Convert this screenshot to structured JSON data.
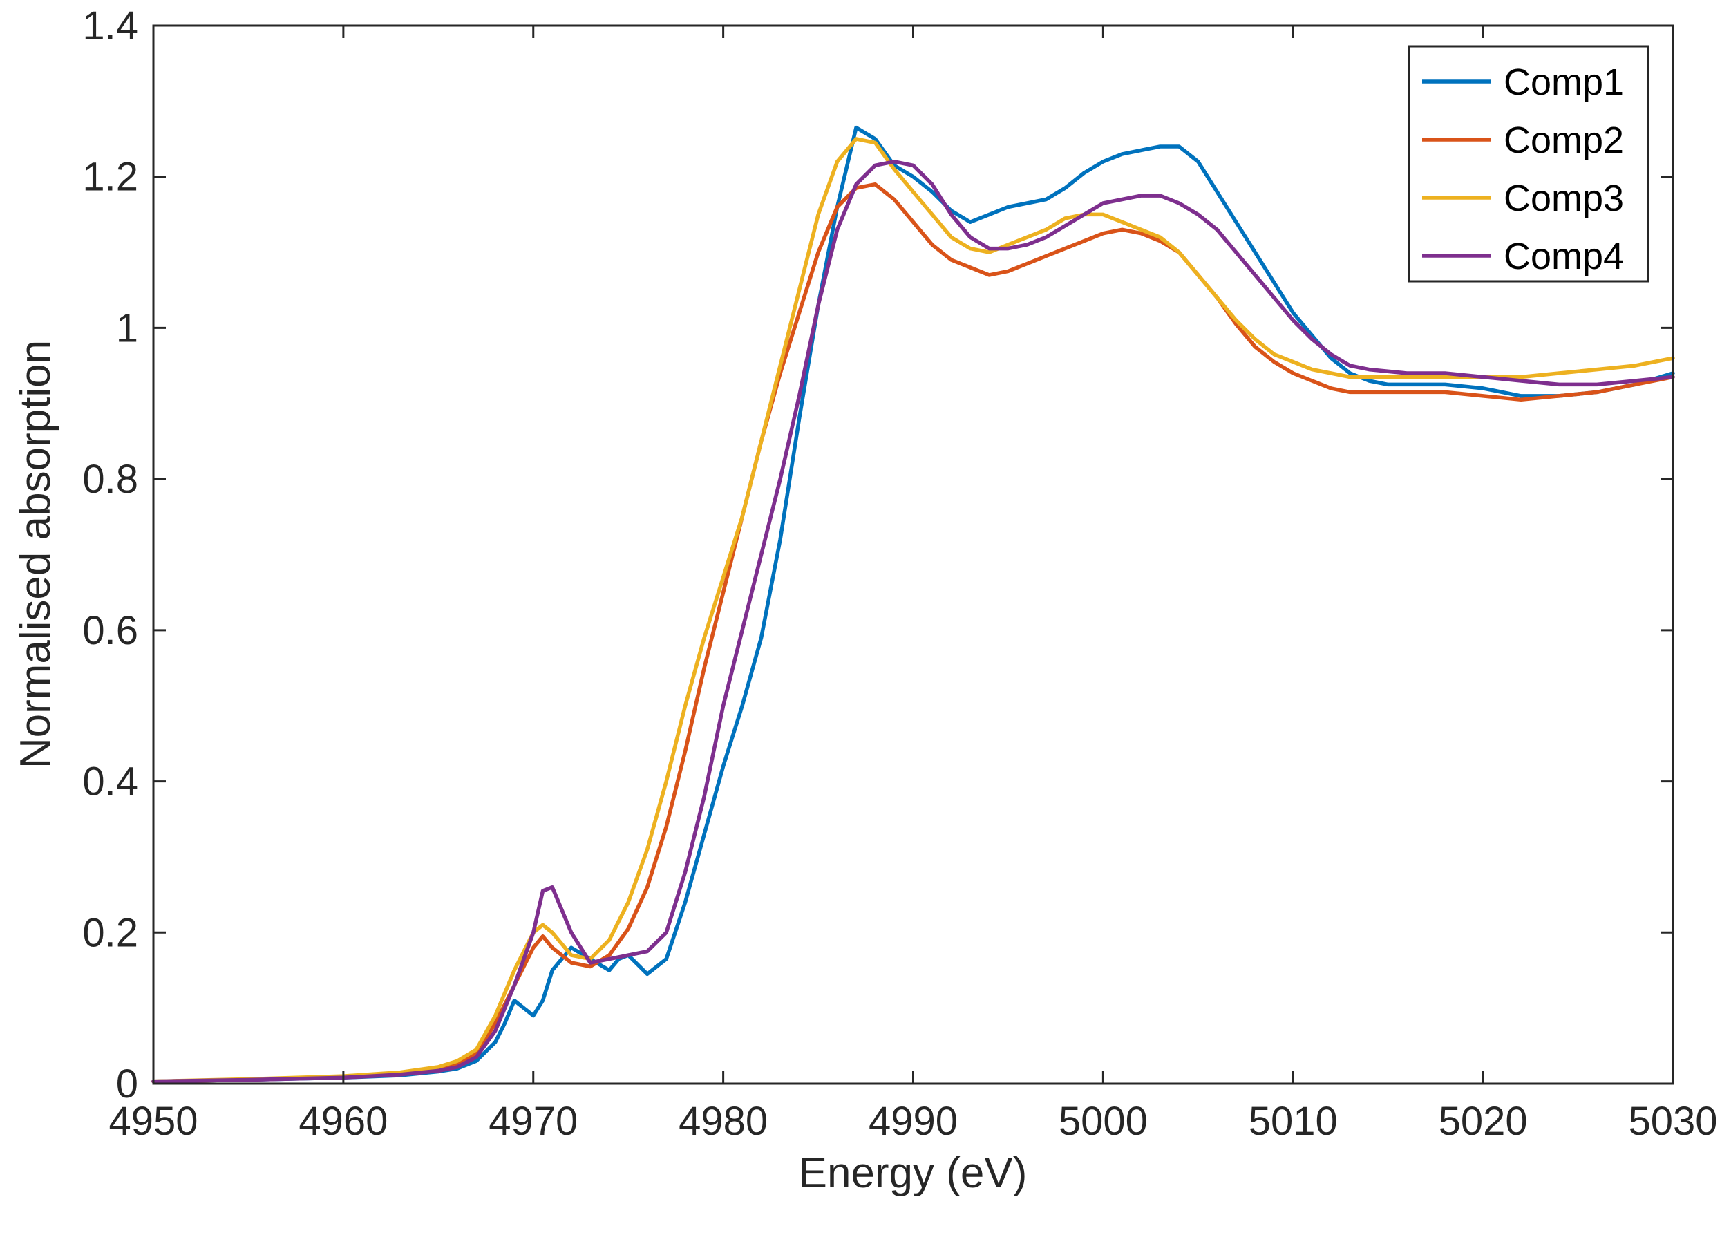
{
  "chart_data": {
    "type": "line",
    "title": "",
    "xlabel": "Energy (eV)",
    "ylabel": "Normalised absorption",
    "xlim": [
      4950,
      5030
    ],
    "ylim": [
      0,
      1.4
    ],
    "xticks": [
      4950,
      4960,
      4970,
      4980,
      4990,
      5000,
      5010,
      5020,
      5030
    ],
    "yticks": [
      0,
      0.2,
      0.4,
      0.6,
      0.8,
      1,
      1.2,
      1.4
    ],
    "xtick_labels": [
      "4950",
      "4960",
      "4970",
      "4980",
      "4990",
      "5000",
      "5010",
      "5020",
      "5030"
    ],
    "ytick_labels": [
      "0",
      "0.2",
      "0.4",
      "0.6",
      "0.8",
      "1",
      "1.2",
      "1.4"
    ],
    "grid": false,
    "legend_position": "top-right",
    "series": [
      {
        "name": "Comp1",
        "color": "#0072BD",
        "x": [
          4950,
          4955,
          4960,
          4963,
          4965,
          4966,
          4967,
          4968,
          4968.5,
          4969,
          4969.5,
          4970,
          4970.5,
          4971,
          4972,
          4973,
          4974,
          4974.5,
          4975,
          4976,
          4977,
          4978,
          4979,
          4980,
          4981,
          4982,
          4983,
          4984,
          4985,
          4986,
          4987,
          4988,
          4989,
          4990,
          4991,
          4992,
          4993,
          4994,
          4995,
          4996,
          4997,
          4998,
          4999,
          5000,
          5001,
          5002,
          5003,
          5004,
          5005,
          5006,
          5007,
          5008,
          5009,
          5010,
          5011,
          5012,
          5013,
          5014,
          5015,
          5016,
          5018,
          5020,
          5022,
          5024,
          5026,
          5028,
          5030
        ],
        "y": [
          0.003,
          0.005,
          0.008,
          0.011,
          0.016,
          0.02,
          0.03,
          0.055,
          0.08,
          0.11,
          0.1,
          0.09,
          0.11,
          0.15,
          0.18,
          0.165,
          0.15,
          0.165,
          0.17,
          0.145,
          0.165,
          0.24,
          0.33,
          0.42,
          0.5,
          0.59,
          0.72,
          0.88,
          1.03,
          1.16,
          1.265,
          1.25,
          1.215,
          1.2,
          1.18,
          1.155,
          1.14,
          1.15,
          1.16,
          1.165,
          1.17,
          1.185,
          1.205,
          1.22,
          1.23,
          1.235,
          1.24,
          1.24,
          1.22,
          1.18,
          1.14,
          1.1,
          1.06,
          1.02,
          0.99,
          0.96,
          0.94,
          0.93,
          0.925,
          0.925,
          0.925,
          0.92,
          0.91,
          0.91,
          0.915,
          0.925,
          0.94
        ]
      },
      {
        "name": "Comp2",
        "color": "#D95319",
        "x": [
          4950,
          4955,
          4960,
          4963,
          4965,
          4966,
          4967,
          4968,
          4969,
          4970,
          4970.5,
          4971,
          4972,
          4973,
          4974,
          4975,
          4976,
          4977,
          4978,
          4979,
          4980,
          4981,
          4982,
          4983,
          4984,
          4985,
          4986,
          4987,
          4988,
          4989,
          4990,
          4991,
          4992,
          4993,
          4994,
          4995,
          4996,
          4997,
          4998,
          4999,
          5000,
          5001,
          5002,
          5003,
          5004,
          5005,
          5006,
          5007,
          5008,
          5009,
          5010,
          5011,
          5012,
          5013,
          5014,
          5016,
          5018,
          5020,
          5022,
          5024,
          5026,
          5028,
          5030
        ],
        "y": [
          0.003,
          0.005,
          0.009,
          0.013,
          0.019,
          0.026,
          0.04,
          0.08,
          0.13,
          0.18,
          0.195,
          0.18,
          0.16,
          0.155,
          0.17,
          0.205,
          0.26,
          0.34,
          0.44,
          0.55,
          0.65,
          0.75,
          0.85,
          0.94,
          1.02,
          1.1,
          1.16,
          1.185,
          1.19,
          1.17,
          1.14,
          1.11,
          1.09,
          1.08,
          1.07,
          1.075,
          1.085,
          1.095,
          1.105,
          1.115,
          1.125,
          1.13,
          1.125,
          1.115,
          1.1,
          1.07,
          1.04,
          1.005,
          0.975,
          0.955,
          0.94,
          0.93,
          0.92,
          0.915,
          0.915,
          0.915,
          0.915,
          0.91,
          0.905,
          0.91,
          0.915,
          0.925,
          0.935
        ]
      },
      {
        "name": "Comp3",
        "color": "#EDB120",
        "x": [
          4950,
          4955,
          4960,
          4963,
          4965,
          4966,
          4967,
          4968,
          4969,
          4970,
          4970.5,
          4971,
          4972,
          4973,
          4974,
          4975,
          4976,
          4977,
          4978,
          4979,
          4980,
          4981,
          4982,
          4983,
          4984,
          4985,
          4986,
          4987,
          4988,
          4989,
          4990,
          4991,
          4992,
          4993,
          4994,
          4995,
          4996,
          4997,
          4998,
          4999,
          5000,
          5001,
          5002,
          5003,
          5004,
          5005,
          5006,
          5007,
          5008,
          5009,
          5010,
          5011,
          5012,
          5013,
          5014,
          5016,
          5018,
          5020,
          5022,
          5024,
          5026,
          5028,
          5030
        ],
        "y": [
          0.003,
          0.006,
          0.01,
          0.015,
          0.022,
          0.03,
          0.045,
          0.09,
          0.15,
          0.2,
          0.21,
          0.2,
          0.17,
          0.165,
          0.19,
          0.24,
          0.31,
          0.4,
          0.5,
          0.59,
          0.67,
          0.75,
          0.85,
          0.95,
          1.05,
          1.15,
          1.22,
          1.25,
          1.245,
          1.21,
          1.18,
          1.15,
          1.12,
          1.105,
          1.1,
          1.11,
          1.12,
          1.13,
          1.145,
          1.15,
          1.15,
          1.14,
          1.13,
          1.12,
          1.1,
          1.07,
          1.04,
          1.01,
          0.985,
          0.965,
          0.955,
          0.945,
          0.94,
          0.935,
          0.935,
          0.935,
          0.935,
          0.935,
          0.935,
          0.94,
          0.945,
          0.95,
          0.96
        ]
      },
      {
        "name": "Comp4",
        "color": "#7E2F8E",
        "x": [
          4950,
          4955,
          4960,
          4963,
          4965,
          4966,
          4967,
          4968,
          4969,
          4970,
          4970.5,
          4971,
          4972,
          4973,
          4974,
          4975,
          4976,
          4977,
          4978,
          4979,
          4980,
          4981,
          4982,
          4983,
          4984,
          4985,
          4986,
          4987,
          4988,
          4989,
          4990,
          4991,
          4992,
          4993,
          4994,
          4995,
          4996,
          4997,
          4998,
          4999,
          5000,
          5001,
          5002,
          5003,
          5004,
          5005,
          5006,
          5007,
          5008,
          5009,
          5010,
          5011,
          5012,
          5013,
          5014,
          5016,
          5018,
          5020,
          5022,
          5024,
          5026,
          5028,
          5030
        ],
        "y": [
          0.003,
          0.005,
          0.008,
          0.012,
          0.017,
          0.022,
          0.035,
          0.07,
          0.13,
          0.2,
          0.255,
          0.26,
          0.2,
          0.16,
          0.165,
          0.17,
          0.175,
          0.2,
          0.28,
          0.38,
          0.5,
          0.6,
          0.7,
          0.8,
          0.91,
          1.03,
          1.13,
          1.19,
          1.215,
          1.22,
          1.215,
          1.19,
          1.15,
          1.12,
          1.105,
          1.105,
          1.11,
          1.12,
          1.135,
          1.15,
          1.165,
          1.17,
          1.175,
          1.175,
          1.165,
          1.15,
          1.13,
          1.1,
          1.07,
          1.04,
          1.01,
          0.985,
          0.965,
          0.95,
          0.945,
          0.94,
          0.94,
          0.935,
          0.93,
          0.925,
          0.925,
          0.93,
          0.935
        ]
      }
    ]
  }
}
